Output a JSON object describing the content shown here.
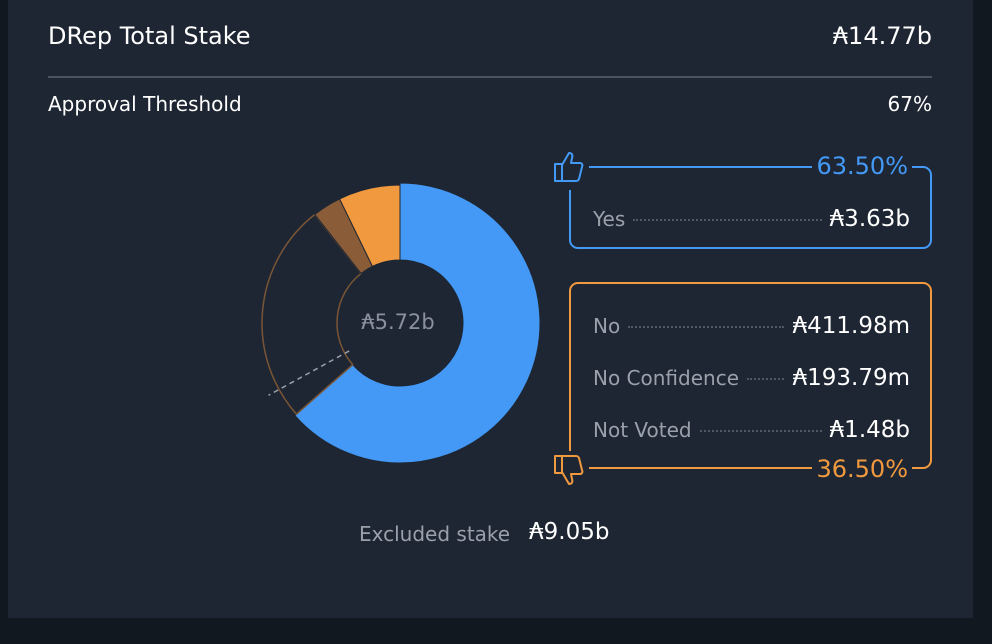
{
  "header": {
    "title": "DRep Total Stake",
    "value": "₳14.77b"
  },
  "threshold": {
    "title": "Approval Threshold",
    "value": 67,
    "label": "67%"
  },
  "chart_data": {
    "type": "pie",
    "categories": [
      "Yes",
      "No",
      "No Confidence",
      "Not Voted"
    ],
    "values": [
      3.63,
      0.41198,
      0.19379,
      1.48
    ],
    "value_labels": [
      "₳3.63b",
      "₳411.98m",
      "₳193.79m",
      "₳1.48b"
    ],
    "colors": [
      "#4399f5",
      "#f0993f",
      "#8a5d38",
      "none"
    ],
    "total_label": "₳5.72b"
  },
  "groups": {
    "yes": "63.50%",
    "no": "36.50%"
  },
  "excluded": {
    "label": "Excluded stake",
    "value": "₳9.05b"
  }
}
